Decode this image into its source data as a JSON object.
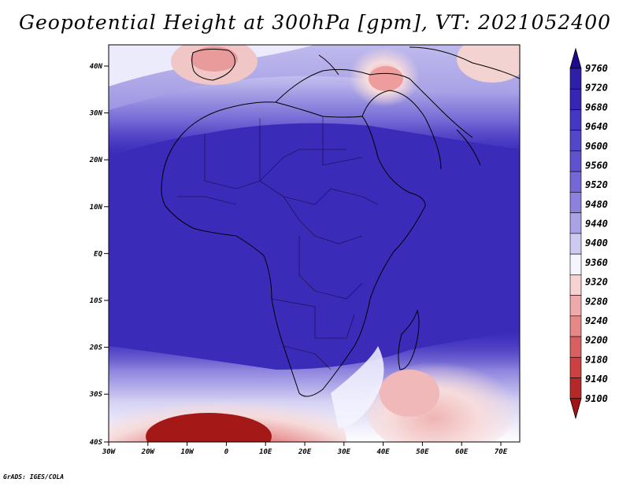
{
  "title": "Geopotential Height at 300hPa [gpm], VT: 2021052400",
  "credit": "GrADS: IGES/COLA",
  "map": {
    "lon_ticks": [
      "30W",
      "20W",
      "10W",
      "0",
      "10E",
      "20E",
      "30E",
      "40E",
      "50E",
      "60E",
      "70E"
    ],
    "lat_ticks": [
      "40N",
      "30N",
      "20N",
      "10N",
      "EQ",
      "10S",
      "20S",
      "30S",
      "40S"
    ]
  },
  "colorbar": {
    "levels": [
      "9760",
      "9720",
      "9680",
      "9640",
      "9600",
      "9560",
      "9520",
      "9480",
      "9440",
      "9400",
      "9360",
      "9320",
      "9280",
      "9240",
      "9200",
      "9180",
      "9140",
      "9100"
    ],
    "colors": [
      "#1e0a8c",
      "#2d1fa8",
      "#3626b6",
      "#4536c4",
      "#5246c9",
      "#6052cf",
      "#7468d6",
      "#8c82dd",
      "#a9a3e6",
      "#cdcaf2",
      "#f5f5ff",
      "#f6d2d2",
      "#eeaaaa",
      "#e48888",
      "#d96060",
      "#cc4040",
      "#b42828",
      "#a01414"
    ]
  }
}
